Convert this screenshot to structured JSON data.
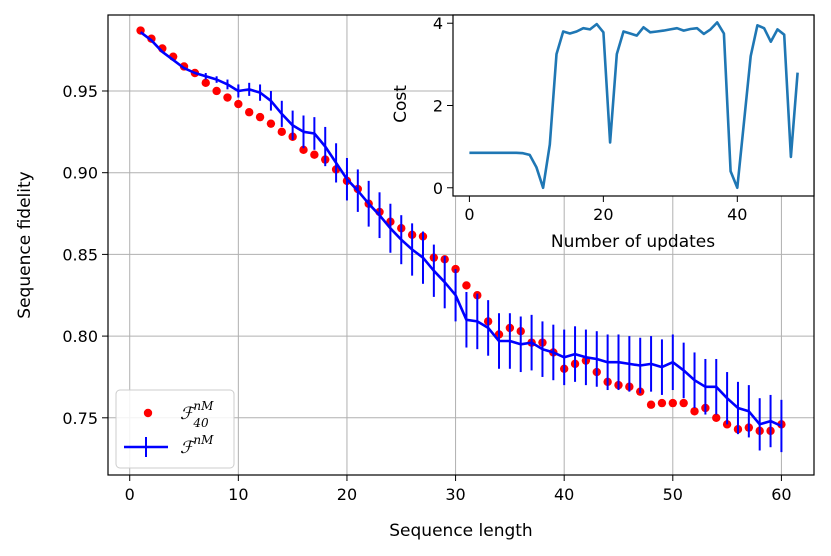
{
  "chart_data": [
    {
      "type": "line",
      "xlabel": "Sequence length",
      "ylabel": "Sequence fidelity",
      "xlim": [
        -2,
        63
      ],
      "ylim": [
        0.715,
        0.9965
      ],
      "xticks": [
        0,
        10,
        20,
        30,
        40,
        50,
        60
      ],
      "xtick_labels": [
        "0",
        "10",
        "20",
        "30",
        "40",
        "50",
        "60"
      ],
      "yticks": [
        0.75,
        0.8,
        0.85,
        0.9,
        0.95
      ],
      "ytick_labels": [
        "0.75",
        "0.80",
        "0.85",
        "0.90",
        "0.95"
      ],
      "grid": true,
      "legend_position": "lower-left",
      "legend": [
        {
          "label": "ℱ",
          "sup": "nM",
          "sub": "40",
          "kind": "scatter",
          "color": "#ff0000"
        },
        {
          "label": "ℱ",
          "sup": "nM",
          "sub": "",
          "kind": "errorbar-line",
          "color": "#0000ff"
        }
      ],
      "series": [
        {
          "name": "F_40^nM",
          "kind": "scatter",
          "color": "#ff0000",
          "x": [
            1,
            2,
            3,
            4,
            5,
            6,
            7,
            8,
            9,
            10,
            11,
            12,
            13,
            14,
            15,
            16,
            17,
            18,
            19,
            20,
            21,
            22,
            23,
            24,
            25,
            26,
            27,
            28,
            29,
            30,
            31,
            32,
            33,
            34,
            35,
            36,
            37,
            38,
            39,
            40,
            41,
            42,
            43,
            44,
            45,
            46,
            47,
            48,
            49,
            50,
            51,
            52,
            53,
            54,
            55,
            56,
            57,
            58,
            59,
            60
          ],
          "y": [
            0.987,
            0.982,
            0.976,
            0.971,
            0.965,
            0.961,
            0.955,
            0.95,
            0.946,
            0.942,
            0.937,
            0.934,
            0.93,
            0.925,
            0.922,
            0.914,
            0.911,
            0.908,
            0.902,
            0.895,
            0.89,
            0.881,
            0.876,
            0.87,
            0.866,
            0.862,
            0.861,
            0.848,
            0.847,
            0.841,
            0.831,
            0.825,
            0.809,
            0.801,
            0.805,
            0.803,
            0.796,
            0.796,
            0.79,
            0.78,
            0.783,
            0.785,
            0.778,
            0.772,
            0.77,
            0.769,
            0.766,
            0.758,
            0.759,
            0.759,
            0.759,
            0.754,
            0.756,
            0.75,
            0.746,
            0.743,
            0.744,
            0.742,
            0.742,
            0.746
          ]
        },
        {
          "name": "F^nM",
          "kind": "line-errorbar",
          "color": "#0000ff",
          "x": [
            1,
            2,
            3,
            4,
            5,
            6,
            7,
            8,
            9,
            10,
            11,
            12,
            13,
            14,
            15,
            16,
            17,
            18,
            19,
            20,
            21,
            22,
            23,
            24,
            25,
            26,
            27,
            28,
            29,
            30,
            31,
            32,
            33,
            34,
            35,
            36,
            37,
            38,
            39,
            40,
            41,
            42,
            43,
            44,
            45,
            46,
            47,
            48,
            49,
            50,
            51,
            52,
            53,
            54,
            55,
            56,
            57,
            58,
            59,
            60
          ],
          "y": [
            0.986,
            0.981,
            0.974,
            0.969,
            0.964,
            0.961,
            0.959,
            0.957,
            0.954,
            0.95,
            0.951,
            0.949,
            0.944,
            0.936,
            0.929,
            0.925,
            0.924,
            0.916,
            0.906,
            0.896,
            0.889,
            0.881,
            0.874,
            0.866,
            0.859,
            0.853,
            0.848,
            0.84,
            0.833,
            0.825,
            0.81,
            0.809,
            0.805,
            0.797,
            0.797,
            0.795,
            0.796,
            0.792,
            0.79,
            0.787,
            0.789,
            0.787,
            0.786,
            0.784,
            0.784,
            0.783,
            0.782,
            0.783,
            0.781,
            0.784,
            0.779,
            0.773,
            0.769,
            0.769,
            0.762,
            0.756,
            0.754,
            0.746,
            0.748,
            0.745
          ],
          "yerr": [
            0,
            0,
            0,
            0,
            0,
            0,
            0.002,
            0.002,
            0.003,
            0.004,
            0.004,
            0.005,
            0.006,
            0.008,
            0.009,
            0.01,
            0.01,
            0.012,
            0.012,
            0.013,
            0.013,
            0.014,
            0.014,
            0.015,
            0.015,
            0.016,
            0.016,
            0.016,
            0.016,
            0.016,
            0.017,
            0.017,
            0.017,
            0.017,
            0.017,
            0.017,
            0.017,
            0.017,
            0.017,
            0.017,
            0.017,
            0.017,
            0.017,
            0.017,
            0.017,
            0.017,
            0.017,
            0.017,
            0.017,
            0.017,
            0.017,
            0.017,
            0.017,
            0.017,
            0.016,
            0.016,
            0.016,
            0.016,
            0.016,
            0.016
          ]
        }
      ]
    },
    {
      "type": "line",
      "xlabel": "Number of updates",
      "ylabel": "Cost",
      "xlim": [
        -2.45,
        51.45
      ],
      "ylim": [
        -0.2,
        4.2
      ],
      "xticks": [
        0,
        20,
        40
      ],
      "xtick_labels": [
        "0",
        "20",
        "40"
      ],
      "yticks": [
        0,
        2,
        4
      ],
      "ytick_labels": [
        "0",
        "2",
        "4"
      ],
      "grid": false,
      "series": [
        {
          "color": "#1f77b4",
          "x": [
            0,
            1,
            2,
            3,
            4,
            5,
            6,
            7,
            8,
            9,
            10,
            11,
            12,
            13,
            14,
            15,
            16,
            17,
            18,
            19,
            20,
            21,
            22,
            23,
            24,
            25,
            26,
            27,
            28,
            29,
            30,
            31,
            32,
            33,
            34,
            35,
            36,
            37,
            38,
            39,
            40,
            41,
            42,
            43,
            44,
            45,
            46,
            47,
            48,
            49
          ],
          "y": [
            0.85,
            0.85,
            0.85,
            0.85,
            0.85,
            0.85,
            0.85,
            0.85,
            0.84,
            0.8,
            0.5,
            0.0,
            1.05,
            3.25,
            3.8,
            3.75,
            3.8,
            3.88,
            3.85,
            3.98,
            3.78,
            1.1,
            3.25,
            3.8,
            3.75,
            3.7,
            3.9,
            3.78,
            3.8,
            3.82,
            3.85,
            3.88,
            3.82,
            3.86,
            3.88,
            3.74,
            3.85,
            4.02,
            3.75,
            0.4,
            0.0,
            1.6,
            3.2,
            3.95,
            3.88,
            3.55,
            3.85,
            3.72,
            0.75,
            2.8
          ]
        }
      ]
    }
  ]
}
